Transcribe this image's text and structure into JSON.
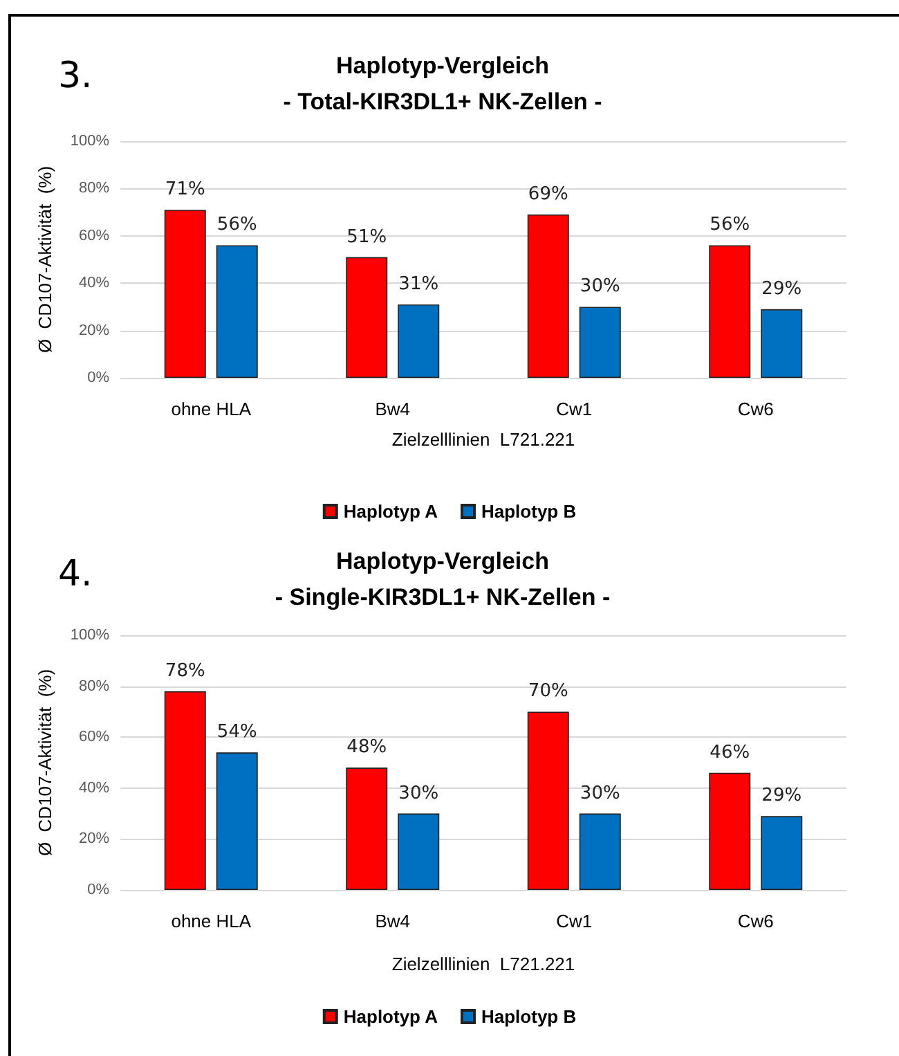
{
  "chart_data": [
    {
      "type": "bar",
      "title": "Haplotyp-Vergleich",
      "subtitle": "- Total-KIR3DL1+ NK-Zellen -",
      "xlabel": "Zielzelllinien  L721.221",
      "ylabel": "Ø  CD107-Aktivität  (%)",
      "annotations": [
        "3."
      ],
      "categories": [
        "ohne HLA",
        "Bw4",
        "Cw1",
        "Cw6"
      ],
      "series": [
        {
          "name": "Haplotyp A",
          "color": "#ff0000",
          "values": [
            71,
            51,
            69,
            56
          ],
          "value_labels": [
            "71%",
            "51%",
            "69%",
            "56%"
          ]
        },
        {
          "name": "Haplotyp B",
          "color": "#0070c0",
          "values": [
            56,
            31,
            30,
            29
          ],
          "value_labels": [
            "56%",
            "31%",
            "30%",
            "29%"
          ]
        }
      ],
      "ylim": [
        0,
        100
      ],
      "yticks": [
        {
          "value": 0,
          "label": "0%"
        },
        {
          "value": 20,
          "label": "20%"
        },
        {
          "value": 40,
          "label": "40%"
        },
        {
          "value": 60,
          "label": "60%"
        },
        {
          "value": 80,
          "label": "80%"
        },
        {
          "value": 100,
          "label": "100%"
        }
      ],
      "grid": "y",
      "legend": "bottom"
    },
    {
      "type": "bar",
      "title": "Haplotyp-Vergleich",
      "subtitle": "- Single-KIR3DL1+ NK-Zellen -",
      "xlabel": "Zielzelllinien  L721.221",
      "ylabel": "Ø  CD107-Aktivität  (%)",
      "annotations": [
        "4."
      ],
      "categories": [
        "ohne HLA",
        "Bw4",
        "Cw1",
        "Cw6"
      ],
      "series": [
        {
          "name": "Haplotyp A",
          "color": "#ff0000",
          "values": [
            78,
            48,
            70,
            46
          ],
          "value_labels": [
            "78%",
            "48%",
            "70%",
            "46%"
          ]
        },
        {
          "name": "Haplotyp B",
          "color": "#0070c0",
          "values": [
            54,
            30,
            30,
            29
          ],
          "value_labels": [
            "54%",
            "30%",
            "30%",
            "29%"
          ]
        }
      ],
      "ylim": [
        0,
        100
      ],
      "yticks": [
        {
          "value": 0,
          "label": "0%"
        },
        {
          "value": 20,
          "label": "20%"
        },
        {
          "value": 40,
          "label": "40%"
        },
        {
          "value": 60,
          "label": "60%"
        },
        {
          "value": 80,
          "label": "80%"
        },
        {
          "value": 100,
          "label": "100%"
        }
      ],
      "grid": "y",
      "legend": "bottom"
    }
  ]
}
